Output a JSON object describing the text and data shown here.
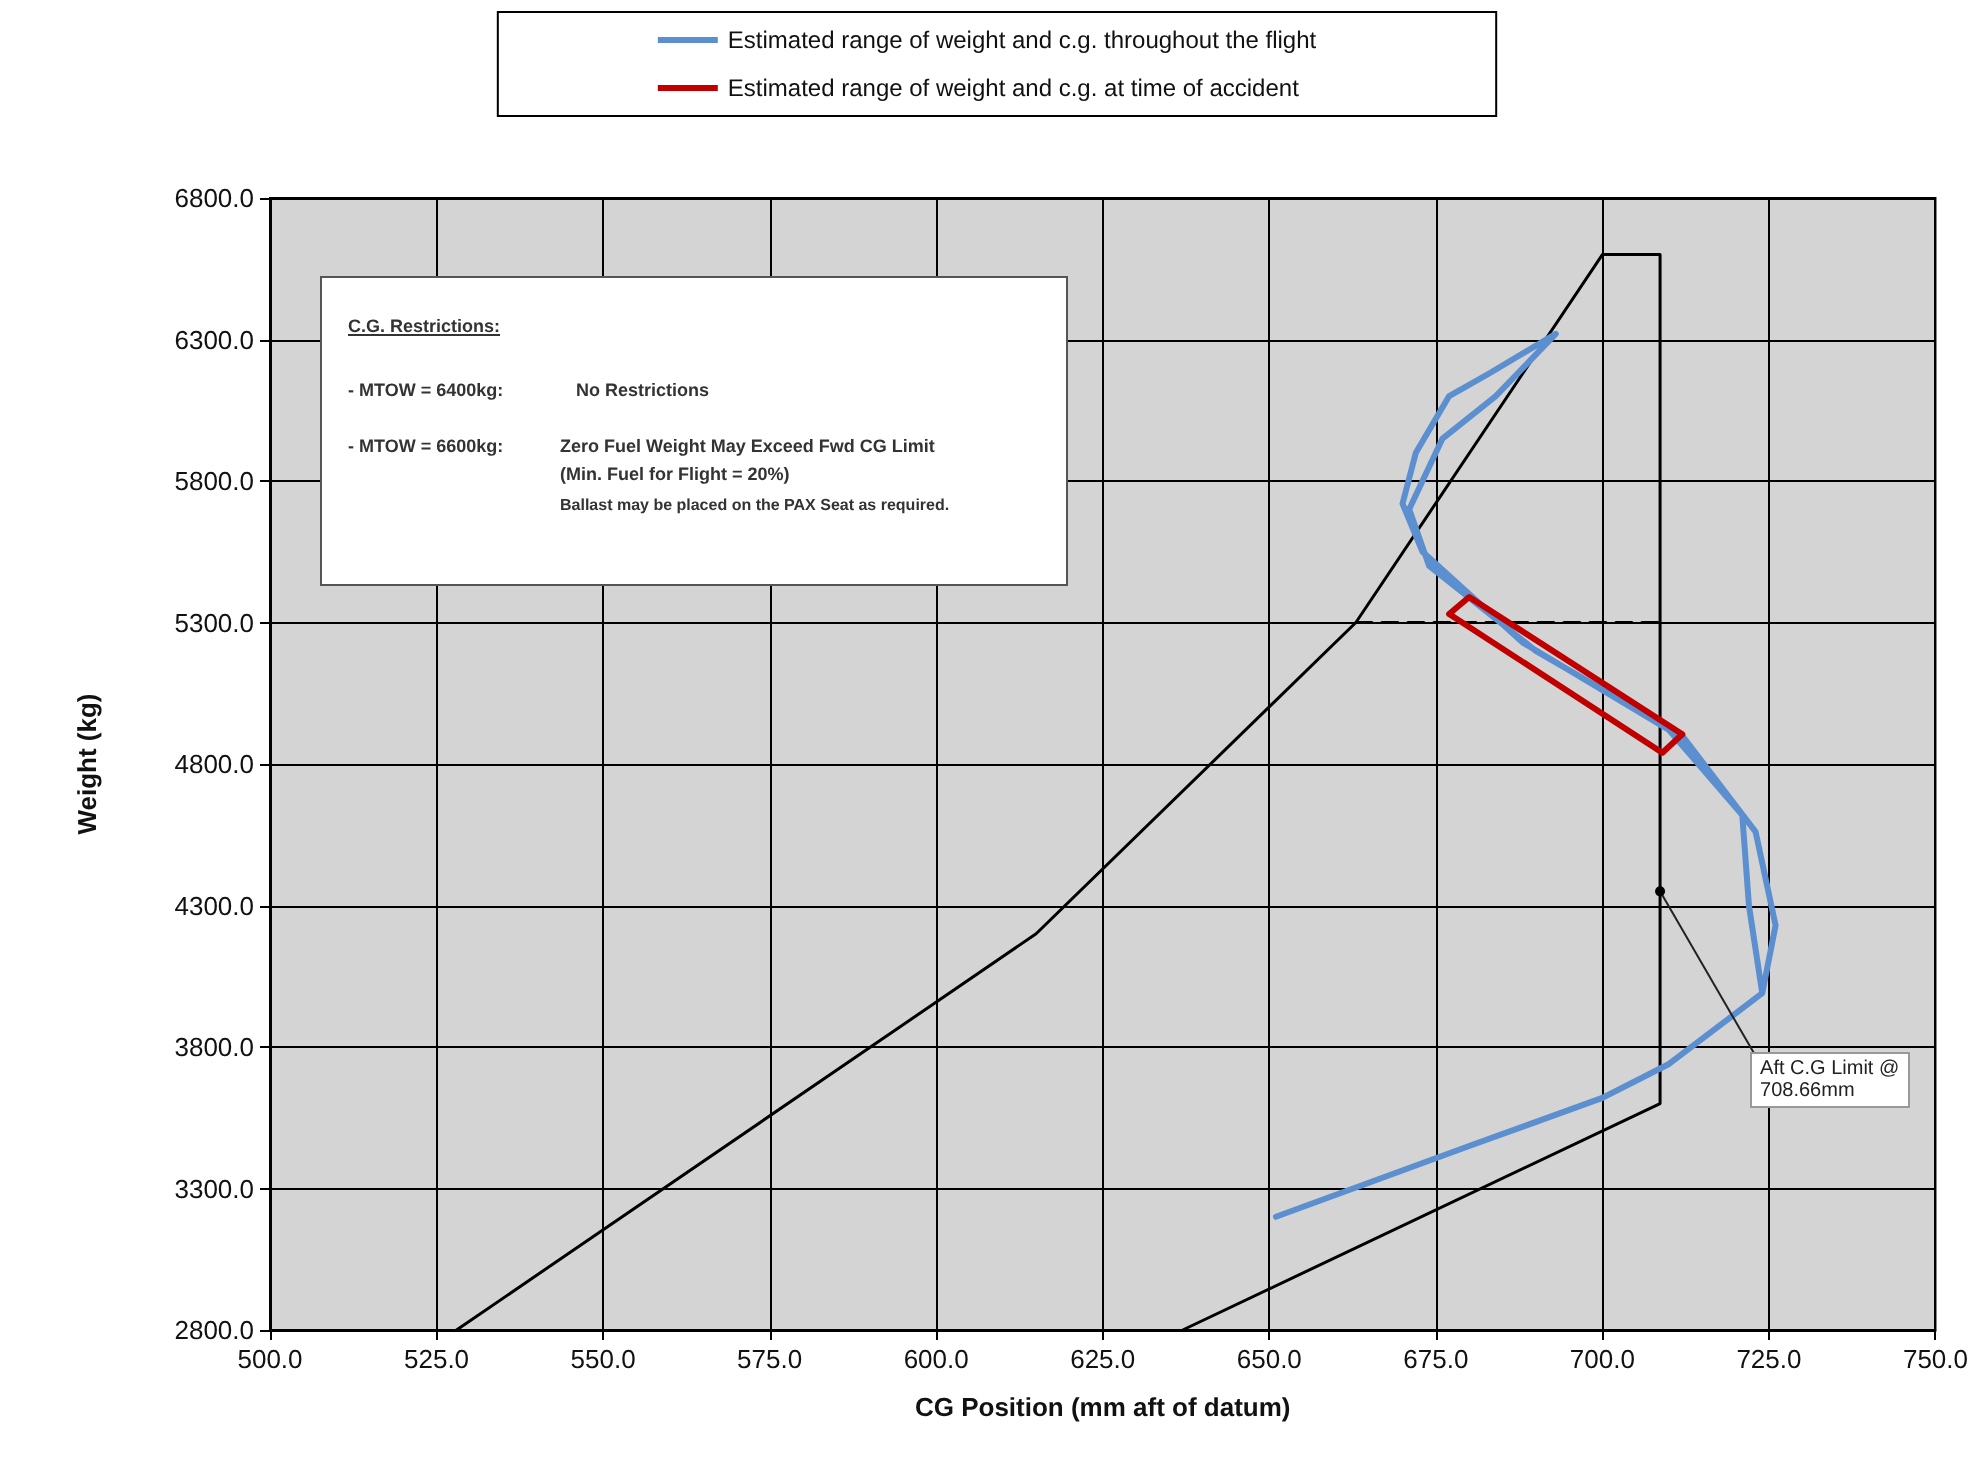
{
  "chart_data": {
    "type": "line",
    "xlabel": "CG Position (mm aft of datum)",
    "ylabel": "Weight (kg)",
    "xlim": [
      500,
      750
    ],
    "ylim": [
      2800,
      6800
    ],
    "xticks": [
      {
        "value": 500,
        "label": "500.0"
      },
      {
        "value": 525,
        "label": "525.0"
      },
      {
        "value": 550,
        "label": "550.0"
      },
      {
        "value": 575,
        "label": "575.0"
      },
      {
        "value": 600,
        "label": "600.0"
      },
      {
        "value": 625,
        "label": "625.0"
      },
      {
        "value": 650,
        "label": "650.0"
      },
      {
        "value": 675,
        "label": "675.0"
      },
      {
        "value": 700,
        "label": "700.0"
      },
      {
        "value": 725,
        "label": "725.0"
      },
      {
        "value": 750,
        "label": "750.0"
      }
    ],
    "yticks": [
      {
        "value": 2800,
        "label": "2800.0"
      },
      {
        "value": 3300,
        "label": "3300.0"
      },
      {
        "value": 3800,
        "label": "3800.0"
      },
      {
        "value": 4300,
        "label": "4300.0"
      },
      {
        "value": 4800,
        "label": "4800.0"
      },
      {
        "value": 5300,
        "label": "5300.0"
      },
      {
        "value": 5800,
        "label": "5800.0"
      },
      {
        "value": 6300,
        "label": "6300.0"
      },
      {
        "value": 6800,
        "label": "6800.0"
      }
    ],
    "grid": true,
    "legend": "top",
    "marker": "none",
    "series": [
      {
        "color": "#000000",
        "line_style": "solid",
        "x": [
          528,
          615,
          663,
          700,
          708.66,
          708.66,
          637
        ],
        "values": [
          2800,
          4200,
          5300,
          6600,
          6600,
          3600,
          2800
        ]
      },
      {
        "color": "#000000",
        "line_style": "dashed",
        "x": [
          663,
          708.66
        ],
        "values": [
          5300,
          5300
        ]
      },
      {
        "name": "Estimated range of weight and c.g. throughout the flight",
        "color": "#5b8fd0",
        "line_style": "solid",
        "x": [
          651,
          680,
          700,
          710,
          724,
          726,
          723,
          712,
          690,
          674,
          671,
          676,
          684,
          693,
          683,
          677,
          672,
          670,
          673,
          688,
          710,
          721,
          722,
          724
        ],
        "values": [
          3200,
          3450,
          3620,
          3740,
          3990,
          4230,
          4560,
          4900,
          5200,
          5500,
          5700,
          5950,
          6100,
          6320,
          6180,
          6100,
          5900,
          5720,
          5550,
          5230,
          4920,
          4620,
          4300,
          3990
        ]
      },
      {
        "name": "Estimated range of weight and c.g. at time of accident",
        "color": "#c00000",
        "line_style": "solid",
        "x": [
          677,
          680,
          712,
          null,
          712,
          709,
          677
        ],
        "values": [
          5330,
          5390,
          4905,
          null,
          4905,
          4840,
          5330
        ]
      }
    ],
    "annotations": [
      "C.G. Restrictions:",
      "- MTOW = 6400kg:",
      "No Restrictions",
      "- MTOW = 6600kg:",
      "Zero Fuel Weight May Exceed Fwd CG Limit",
      "(Min. Fuel for Flight = 20%)",
      "Ballast may be placed on the PAX Seat as required.",
      {
        "text": "Aft C.G Limit @ 708.66mm",
        "x": 708.66,
        "y": 4350
      }
    ]
  }
}
